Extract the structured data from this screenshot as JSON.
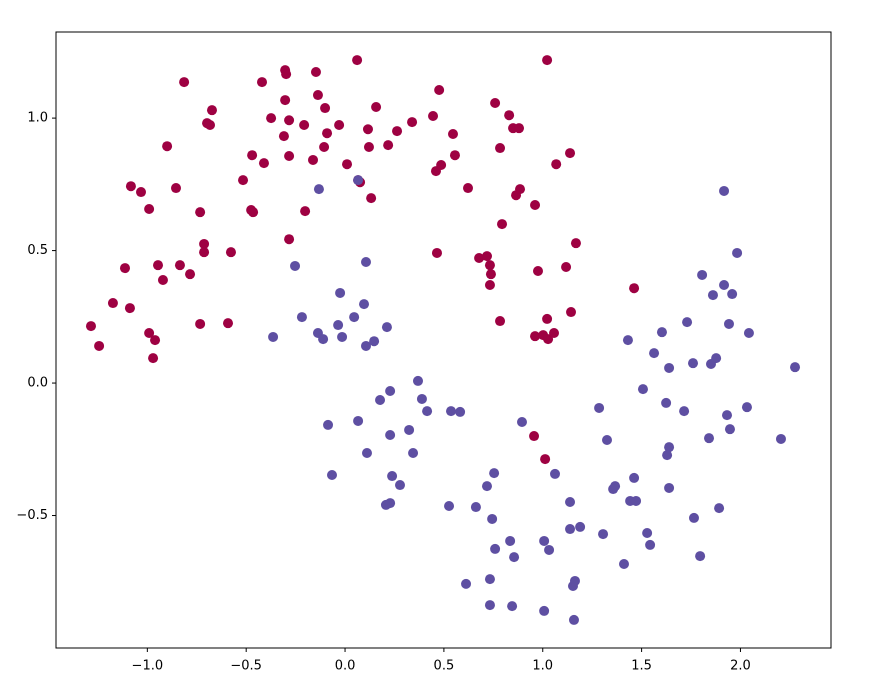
{
  "chart_data": {
    "type": "scatter",
    "xlim": [
      -1.462,
      2.458
    ],
    "ylim": [
      -1.0,
      1.325
    ],
    "xticks": [
      {
        "value": -1,
        "label": "−1.0"
      },
      {
        "value": -0.5,
        "label": "−0.5"
      },
      {
        "value": 0,
        "label": "0.0"
      },
      0.5,
      {
        "value": 1,
        "label": "1.0"
      },
      1.5,
      {
        "value": 2,
        "label": "2.0"
      }
    ],
    "yticks": [
      {
        "value": -0.5,
        "label": "−0.5"
      },
      {
        "value": 0,
        "label": "0.0"
      },
      0.5,
      {
        "value": 1,
        "label": "1.0"
      }
    ],
    "grid": false,
    "series": [
      {
        "color": "#9e0142",
        "x": [
          -1.285,
          -1.244,
          -1.174,
          -1.113,
          -1.088,
          -1.083,
          -1.032,
          -0.991,
          -0.991,
          -0.961,
          -0.971,
          -0.946,
          -0.921,
          -0.855,
          -0.9,
          -0.835,
          -0.814,
          -0.784,
          -0.733,
          -0.733,
          -0.713,
          -0.713,
          -0.698,
          -0.683,
          -0.673,
          -0.577,
          -0.592,
          -0.516,
          -0.47,
          -0.475,
          -0.465,
          -0.42,
          -0.41,
          -0.374,
          -0.303,
          -0.298,
          -0.303,
          -0.309,
          -0.283,
          -0.283,
          -0.283,
          -0.207,
          -0.202,
          -0.162,
          -0.147,
          -0.137,
          -0.101,
          -0.106,
          -0.091,
          -0.03,
          0.01,
          0.061,
          0.066,
          0.076,
          0.116,
          0.121,
          0.132,
          0.157,
          0.218,
          0.263,
          0.339,
          0.445,
          0.46,
          0.465,
          0.476,
          0.486,
          0.546,
          0.556,
          0.622,
          0.678,
          0.718,
          0.733,
          0.738,
          0.733,
          0.759,
          0.784,
          0.784,
          0.794,
          0.83,
          0.85,
          0.88,
          0.865,
          0.885,
          0.961,
          0.976,
          0.961,
          1.002,
          1.022,
          1.022,
          1.027,
          1.057,
          1.118,
          1.138,
          1.143,
          1.168,
          1.462,
          0.956,
          1.012,
          1.068
        ],
        "values": [
          0.215,
          0.14,
          0.302,
          0.434,
          0.283,
          0.743,
          0.721,
          0.657,
          0.189,
          0.162,
          0.094,
          0.445,
          0.389,
          0.736,
          0.894,
          0.445,
          1.136,
          0.411,
          0.645,
          0.223,
          0.525,
          0.494,
          0.981,
          0.974,
          1.03,
          0.494,
          0.226,
          0.766,
          0.86,
          0.653,
          0.645,
          1.136,
          0.83,
          1.0,
          1.181,
          1.166,
          1.068,
          0.932,
          0.992,
          0.857,
          0.543,
          0.974,
          0.649,
          0.842,
          1.174,
          1.087,
          1.038,
          0.891,
          0.943,
          0.974,
          0.826,
          1.219,
          0.766,
          0.758,
          0.958,
          0.891,
          0.698,
          1.042,
          0.898,
          0.951,
          0.985,
          1.008,
          0.8,
          0.491,
          1.106,
          0.823,
          0.94,
          0.86,
          0.736,
          0.472,
          0.479,
          0.445,
          0.411,
          0.37,
          1.057,
          0.234,
          0.887,
          0.6,
          1.011,
          0.962,
          0.962,
          0.709,
          0.732,
          0.672,
          0.423,
          0.177,
          0.181,
          0.242,
          1.219,
          0.166,
          0.189,
          0.438,
          0.868,
          0.268,
          0.528,
          0.358,
          -0.2,
          -0.287,
          0.826
        ]
      },
      {
        "color": "#5e4fa2",
        "x": [
          -0.364,
          -0.253,
          -0.218,
          -0.137,
          -0.111,
          -0.132,
          -0.035,
          -0.025,
          -0.015,
          0.046,
          0.066,
          0.096,
          0.106,
          0.106,
          0.147,
          0.212,
          -0.086,
          -0.066,
          0.066,
          0.111,
          0.177,
          0.228,
          0.228,
          0.238,
          0.207,
          0.228,
          0.278,
          0.324,
          0.344,
          0.369,
          0.389,
          0.415,
          0.536,
          0.582,
          0.526,
          0.612,
          0.662,
          0.733,
          0.718,
          0.733,
          0.744,
          0.754,
          0.759,
          0.835,
          0.855,
          0.895,
          0.845,
          1.007,
          1.032,
          1.007,
          1.062,
          1.138,
          1.138,
          1.153,
          1.163,
          1.189,
          1.158,
          1.285,
          1.305,
          1.325,
          1.356,
          1.366,
          1.411,
          1.431,
          1.442,
          1.462,
          1.472,
          1.507,
          1.528,
          1.543,
          1.563,
          1.603,
          1.624,
          1.629,
          1.639,
          1.639,
          1.639,
          1.715,
          1.73,
          1.76,
          1.765,
          1.796,
          1.806,
          1.841,
          1.851,
          1.861,
          1.877,
          1.892,
          1.917,
          1.917,
          1.942,
          1.932,
          1.947,
          1.958,
          1.983,
          2.033,
          2.043,
          2.205,
          2.276
        ],
        "values": [
          0.174,
          0.442,
          0.249,
          0.189,
          0.166,
          0.732,
          0.219,
          0.34,
          0.174,
          0.249,
          0.766,
          0.298,
          0.457,
          0.14,
          0.158,
          0.211,
          -0.158,
          -0.347,
          -0.143,
          -0.264,
          -0.064,
          -0.03,
          -0.196,
          -0.351,
          -0.46,
          -0.453,
          -0.385,
          -0.177,
          -0.264,
          0.008,
          -0.06,
          -0.106,
          -0.106,
          -0.109,
          -0.464,
          -0.758,
          -0.468,
          -0.838,
          -0.389,
          -0.74,
          -0.513,
          -0.34,
          -0.626,
          -0.596,
          -0.657,
          -0.147,
          -0.842,
          -0.596,
          -0.63,
          -0.86,
          -0.343,
          -0.449,
          -0.551,
          -0.766,
          -0.747,
          -0.543,
          -0.894,
          -0.094,
          -0.57,
          -0.215,
          -0.4,
          -0.389,
          -0.683,
          0.162,
          -0.445,
          -0.358,
          -0.445,
          -0.023,
          -0.566,
          -0.611,
          0.113,
          0.192,
          -0.075,
          -0.272,
          -0.242,
          0.057,
          -0.396,
          -0.106,
          0.23,
          0.075,
          -0.509,
          -0.653,
          0.408,
          -0.208,
          0.072,
          0.332,
          0.094,
          -0.472,
          0.725,
          0.37,
          0.223,
          -0.121,
          -0.174,
          0.336,
          0.491,
          -0.091,
          0.189,
          -0.211,
          0.06
        ]
      }
    ]
  }
}
